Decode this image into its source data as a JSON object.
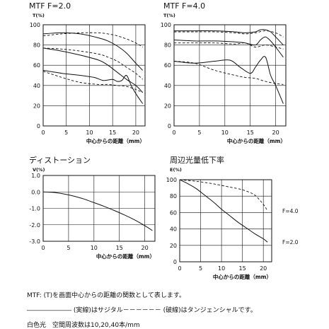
{
  "footer": {
    "line1": "MTF: (T)を画面中心からの距離の関数として表します。",
    "line2": "――――――― (実線)はサジタル－－－－－－ (破線)はタンジェンシャルです。",
    "line3": "白色光　空間周波数は10,20,40本/mm"
  },
  "chart_data": [
    {
      "id": "mtf-f2",
      "type": "line",
      "title": "MTF F=2.0",
      "ylabel": "T(%)",
      "xlabel": "中心からの距離（mm）",
      "xlim": [
        0,
        22
      ],
      "ylim": [
        0,
        100
      ],
      "xticks": [
        0,
        5,
        10,
        15,
        20
      ],
      "yticks": [
        0,
        20,
        40,
        60,
        80,
        100
      ],
      "grid": true,
      "series": [
        {
          "style": "dashed",
          "x": [
            0,
            4,
            8,
            12,
            14,
            16,
            18,
            20,
            21.5
          ],
          "y": [
            89,
            91,
            92,
            92,
            91,
            89,
            86,
            82,
            78
          ]
        },
        {
          "style": "solid",
          "x": [
            0,
            4,
            8,
            12,
            14,
            16,
            18,
            20,
            21.5
          ],
          "y": [
            91,
            92,
            91,
            87,
            84,
            79,
            72,
            62,
            55
          ]
        },
        {
          "style": "dashed",
          "x": [
            0,
            4,
            8,
            12,
            14,
            16,
            18,
            20,
            21.5
          ],
          "y": [
            77,
            76,
            74,
            71,
            68,
            64,
            58,
            52,
            46
          ]
        },
        {
          "style": "solid",
          "x": [
            0,
            4,
            8,
            12,
            14,
            16,
            18,
            20,
            21.5
          ],
          "y": [
            77,
            74,
            70,
            65,
            60,
            53,
            46,
            40,
            33
          ]
        },
        {
          "style": "solid",
          "x": [
            0,
            4,
            8,
            11,
            13,
            15,
            16,
            17,
            18,
            19,
            20,
            21.5
          ],
          "y": [
            55,
            52,
            50,
            48,
            45,
            46,
            44,
            45,
            50,
            40,
            32,
            22
          ]
        },
        {
          "style": "dashed",
          "x": [
            0,
            4,
            8,
            12,
            14,
            16,
            18,
            20,
            21.5
          ],
          "y": [
            54,
            48,
            43,
            41,
            41,
            40,
            39,
            36,
            33
          ]
        }
      ]
    },
    {
      "id": "mtf-f4",
      "type": "line",
      "title": "MTF F=4.0",
      "ylabel": "T(%)",
      "xlabel": "中心からの距離（mm）",
      "xlim": [
        0,
        22
      ],
      "ylim": [
        0,
        100
      ],
      "xticks": [
        0,
        5,
        10,
        15,
        20
      ],
      "yticks": [
        0,
        20,
        40,
        60,
        80,
        100
      ],
      "grid": true,
      "series": [
        {
          "style": "dashed",
          "x": [
            0,
            4,
            8,
            12,
            14,
            16,
            18,
            20,
            21.5
          ],
          "y": [
            93,
            93,
            93,
            92,
            91,
            92,
            94,
            92,
            88
          ]
        },
        {
          "style": "solid",
          "x": [
            0,
            4,
            8,
            12,
            14,
            16,
            17,
            18,
            19,
            20,
            21.5
          ],
          "y": [
            94,
            94,
            94,
            93,
            92,
            93,
            95,
            95,
            93,
            88,
            80
          ]
        },
        {
          "style": "solid",
          "x": [
            0,
            4,
            8,
            12,
            14,
            16,
            17,
            18,
            19,
            20,
            21.5
          ],
          "y": [
            85,
            84,
            84,
            83,
            82,
            80,
            85,
            88,
            84,
            78,
            68
          ]
        },
        {
          "style": "dashed",
          "x": [
            0,
            4,
            8,
            12,
            14,
            16,
            18,
            20,
            21.5
          ],
          "y": [
            82,
            82,
            82,
            81,
            82,
            78,
            80,
            78,
            76
          ]
        },
        {
          "style": "solid",
          "x": [
            0,
            4,
            8,
            11,
            13,
            15,
            16,
            17,
            18,
            19,
            20,
            21.5
          ],
          "y": [
            64,
            62,
            64,
            65,
            58,
            52,
            58,
            65,
            68,
            50,
            40,
            22
          ]
        },
        {
          "style": "dashed",
          "x": [
            0,
            4,
            8,
            12,
            14,
            16,
            18,
            20,
            21.5
          ],
          "y": [
            64,
            62,
            55,
            50,
            48,
            47,
            44,
            42,
            41
          ]
        }
      ]
    },
    {
      "id": "distortion",
      "type": "line",
      "title": "ディストーション",
      "ylabel": "V(%)",
      "xlabel": "中心からの距離（mm）",
      "xlim": [
        0,
        22
      ],
      "ylim": [
        -3.0,
        1.0
      ],
      "xticks": [
        0,
        5,
        10,
        15,
        20
      ],
      "yticks": [
        1.0,
        0.0,
        -1.0,
        -2.0,
        -3.0
      ],
      "ytick_labels": [
        "1.0",
        "0.0",
        "-1.0",
        "-2.0",
        "-3.0"
      ],
      "grid": true,
      "series": [
        {
          "style": "solid",
          "x": [
            0,
            2,
            4,
            6,
            8,
            10,
            12,
            14,
            16,
            18,
            20,
            21.5
          ],
          "y": [
            0,
            -0.03,
            -0.12,
            -0.25,
            -0.43,
            -0.65,
            -0.88,
            -1.13,
            -1.4,
            -1.7,
            -2.05,
            -2.35
          ]
        }
      ]
    },
    {
      "id": "vignetting",
      "type": "line",
      "title": "周辺光量低下率",
      "ylabel": "E(%)",
      "xlabel": "中心からの距離（mm）",
      "xlim": [
        0,
        22
      ],
      "ylim": [
        0,
        100
      ],
      "xticks": [
        0,
        5,
        10,
        15,
        20
      ],
      "yticks": [
        0,
        20,
        40,
        60,
        80,
        100
      ],
      "grid": true,
      "series": [
        {
          "name": "F=4.0",
          "style": "dashed",
          "x": [
            0,
            4,
            8,
            12,
            14,
            16,
            18,
            20,
            21
          ],
          "y": [
            100,
            98,
            95,
            91,
            89,
            86,
            81,
            70,
            62
          ]
        },
        {
          "name": "F=2.0",
          "style": "solid",
          "x": [
            0,
            2,
            4,
            6,
            8,
            10,
            12,
            14,
            16,
            18,
            20,
            21
          ],
          "y": [
            100,
            95,
            89,
            81,
            73,
            64,
            56,
            48,
            41,
            34,
            28,
            24
          ]
        }
      ]
    }
  ]
}
